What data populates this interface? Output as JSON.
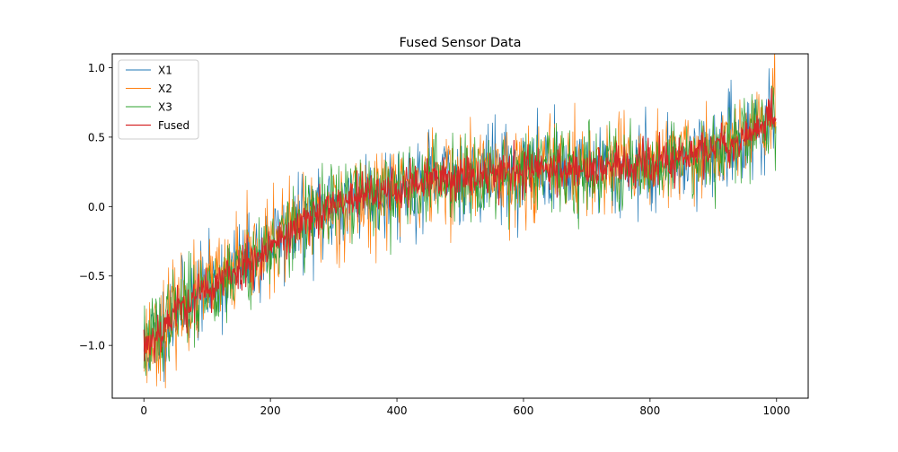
{
  "chart_data": {
    "type": "line",
    "title": "Fused Sensor Data",
    "xlabel": "",
    "ylabel": "",
    "xlim": [
      -50,
      1050
    ],
    "ylim": [
      -1.38,
      1.1
    ],
    "xticks": [
      0,
      200,
      400,
      600,
      800,
      1000
    ],
    "yticks": [
      -1.0,
      -0.5,
      0.0,
      0.5,
      1.0
    ],
    "xtick_labels": [
      "0",
      "200",
      "400",
      "600",
      "800",
      "1000"
    ],
    "ytick_labels": [
      "−1.0",
      "−0.5",
      "0.0",
      "0.5",
      "1.0"
    ],
    "grid": false,
    "legend_position": "upper-left",
    "n_points": 1000,
    "trend_x": [
      0,
      25,
      50,
      100,
      150,
      200,
      250,
      300,
      350,
      400,
      450,
      500,
      550,
      600,
      650,
      700,
      750,
      800,
      850,
      900,
      950,
      1000
    ],
    "trend_y": [
      -1.0,
      -0.9,
      -0.75,
      -0.6,
      -0.45,
      -0.28,
      -0.13,
      0.0,
      0.08,
      0.13,
      0.18,
      0.22,
      0.25,
      0.26,
      0.27,
      0.28,
      0.28,
      0.3,
      0.35,
      0.42,
      0.5,
      0.65
    ],
    "series": [
      {
        "name": "X1",
        "color": "#1f77b4",
        "noise": 0.16,
        "width": 0.7,
        "seed": 11
      },
      {
        "name": "X2",
        "color": "#ff7f0e",
        "noise": 0.17,
        "width": 0.7,
        "seed": 23
      },
      {
        "name": "X3",
        "color": "#2ca02c",
        "noise": 0.15,
        "width": 0.7,
        "seed": 37
      },
      {
        "name": "Fused",
        "color": "#d62728",
        "noise": 0.08,
        "width": 1.1,
        "seed": 53
      }
    ]
  }
}
